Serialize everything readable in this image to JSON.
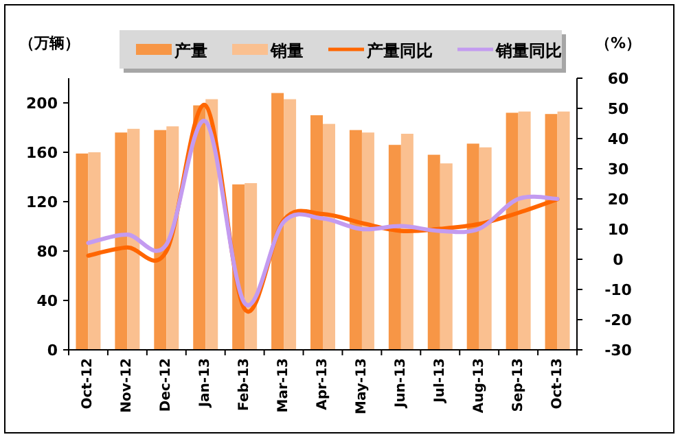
{
  "chart_data": {
    "type": "bar",
    "ylabel": "（万辆）",
    "y2label": "（%）",
    "categories": [
      "Oct-12",
      "Nov-12",
      "Dec-12",
      "Jan-13",
      "Feb-13",
      "Mar-13",
      "Apr-13",
      "May-13",
      "Jun-13",
      "Jul-13",
      "Aug-13",
      "Sep-13",
      "Oct-13"
    ],
    "series": [
      {
        "name": "产量",
        "color": "#f79646",
        "values": [
          159,
          176,
          178,
          198,
          134,
          208,
          190,
          178,
          166,
          158,
          167,
          192,
          191
        ]
      },
      {
        "name": "销量",
        "color": "#fac090",
        "values": [
          160,
          179,
          181,
          203,
          135,
          203,
          183,
          176,
          175,
          151,
          164,
          193,
          193
        ]
      },
      {
        "name": "产量同比",
        "type": "line",
        "axis": "y2",
        "color": "#ff6600",
        "values": [
          1.2,
          3.9,
          2.7,
          51,
          -16.5,
          13,
          15,
          12,
          9.4,
          10.1,
          11.7,
          15.4,
          19.9
        ]
      },
      {
        "name": "销量同比",
        "type": "line",
        "axis": "y2",
        "color": "#c39bf0",
        "values": [
          5.4,
          8.2,
          4.9,
          45.7,
          -14.5,
          12.4,
          13.5,
          10,
          11,
          9.4,
          10.1,
          20,
          20
        ]
      }
    ],
    "ylim": [
      0,
      220
    ],
    "yticks": [
      0,
      40,
      80,
      120,
      160,
      200
    ],
    "y2lim": [
      -30,
      60
    ],
    "y2ticks": [
      -30,
      -20,
      -10,
      0,
      10,
      20,
      30,
      40,
      50,
      60
    ],
    "legend": "top"
  }
}
